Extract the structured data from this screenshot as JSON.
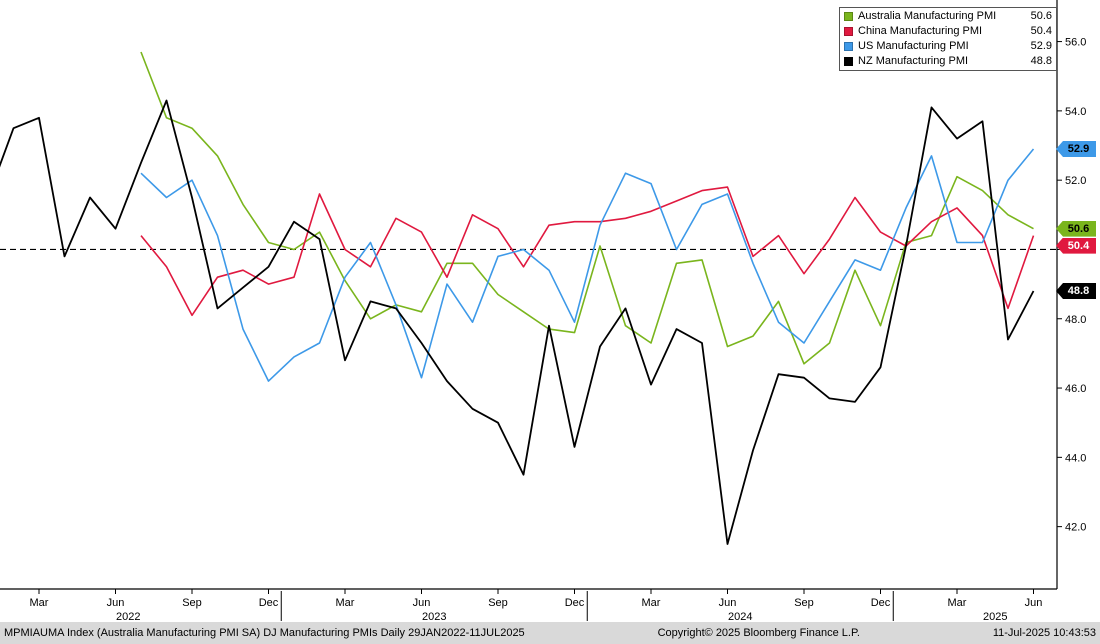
{
  "chart_data": {
    "type": "line",
    "title": "DJ Manufacturing PMIs",
    "xlabel": "",
    "ylabel": "",
    "frequency_shown": "monthly points, daily-dated range 29JAN2022-11JUL2025",
    "grid": false,
    "legend_position": "top-right",
    "ylim": [
      40.2,
      57.2
    ],
    "yticks": [
      56,
      54,
      52,
      50,
      48,
      46,
      44,
      42
    ],
    "ytick_labels": [
      "56.0",
      "54.0",
      "52.0",
      "50.0",
      "48.0",
      "46.0",
      "44.0",
      "42.0"
    ],
    "reference_line": 50.0,
    "x": [
      "Jan 2022",
      "Feb 2022",
      "Mar 2022",
      "Apr 2022",
      "May 2022",
      "Jun 2022",
      "Jul 2022",
      "Aug 2022",
      "Sep 2022",
      "Oct 2022",
      "Nov 2022",
      "Dec 2022",
      "Jan 2023",
      "Feb 2023",
      "Mar 2023",
      "Apr 2023",
      "May 2023",
      "Jun 2023",
      "Jul 2023",
      "Aug 2023",
      "Sep 2023",
      "Oct 2023",
      "Nov 2023",
      "Dec 2023",
      "Jan 2024",
      "Feb 2024",
      "Mar 2024",
      "Apr 2024",
      "May 2024",
      "Jun 2024",
      "Jul 2024",
      "Aug 2024",
      "Sep 2024",
      "Oct 2024",
      "Nov 2024",
      "Dec 2024",
      "Jan 2025",
      "Feb 2025",
      "Mar 2025",
      "Apr 2025",
      "May 2025",
      "Jun 2025"
    ],
    "x_ticks": [
      {
        "i": 2,
        "label": "Mar"
      },
      {
        "i": 5,
        "label": "Jun"
      },
      {
        "i": 8,
        "label": "Sep"
      },
      {
        "i": 11,
        "label": "Dec"
      },
      {
        "i": 14,
        "label": "Mar"
      },
      {
        "i": 17,
        "label": "Jun"
      },
      {
        "i": 20,
        "label": "Sep"
      },
      {
        "i": 23,
        "label": "Dec"
      },
      {
        "i": 26,
        "label": "Mar"
      },
      {
        "i": 29,
        "label": "Jun"
      },
      {
        "i": 32,
        "label": "Sep"
      },
      {
        "i": 35,
        "label": "Dec"
      },
      {
        "i": 38,
        "label": "Mar"
      },
      {
        "i": 41,
        "label": "Jun"
      }
    ],
    "year_labels": [
      {
        "i": 5.5,
        "label": "2022"
      },
      {
        "i": 17.5,
        "label": "2023"
      },
      {
        "i": 29.5,
        "label": "2024"
      },
      {
        "i": 39.5,
        "label": "2025"
      }
    ],
    "year_separators": [
      11.5,
      23.5,
      35.5
    ],
    "series": [
      {
        "id": "australia",
        "name": "Australia Manufacturing PMI",
        "color": "#7ab51d",
        "tag_text": "#000000",
        "last_value": "50.6",
        "values": [
          null,
          null,
          null,
          null,
          null,
          null,
          55.7,
          53.8,
          53.5,
          52.7,
          51.3,
          50.2,
          50.0,
          50.5,
          49.1,
          48.0,
          48.4,
          48.2,
          49.6,
          49.6,
          48.7,
          48.2,
          47.7,
          47.6,
          50.1,
          47.8,
          47.3,
          49.6,
          49.7,
          47.2,
          47.5,
          48.5,
          46.7,
          47.3,
          49.4,
          47.8,
          50.2,
          50.4,
          52.1,
          51.7,
          51.0,
          50.6
        ]
      },
      {
        "id": "china",
        "name": "China Manufacturing PMI",
        "color": "#e0193f",
        "tag_text": "#ffffff",
        "last_value": "50.4",
        "values": [
          null,
          null,
          null,
          null,
          null,
          null,
          50.4,
          49.5,
          48.1,
          49.2,
          49.4,
          49.0,
          49.2,
          51.6,
          50.0,
          49.5,
          50.9,
          50.5,
          49.2,
          51.0,
          50.6,
          49.5,
          50.7,
          50.8,
          50.8,
          50.9,
          51.1,
          51.4,
          51.7,
          51.8,
          49.8,
          50.4,
          49.3,
          50.3,
          51.5,
          50.5,
          50.1,
          50.8,
          51.2,
          50.4,
          48.3,
          50.4
        ]
      },
      {
        "id": "us",
        "name": "US Manufacturing PMI",
        "color": "#3d99e8",
        "tag_text": "#000000",
        "last_value": "52.9",
        "values": [
          null,
          null,
          null,
          null,
          null,
          null,
          52.2,
          51.5,
          52.0,
          50.4,
          47.7,
          46.2,
          46.9,
          47.3,
          49.2,
          50.2,
          48.4,
          46.3,
          49.0,
          47.9,
          49.8,
          50.0,
          49.4,
          47.9,
          50.7,
          52.2,
          51.9,
          50.0,
          51.3,
          51.6,
          49.6,
          47.9,
          47.3,
          48.5,
          49.7,
          49.4,
          51.2,
          52.7,
          50.2,
          50.2,
          52.0,
          52.9
        ]
      },
      {
        "id": "nz",
        "name": "NZ Manufacturing PMI",
        "color": "#000000",
        "tag_text": "#ffffff",
        "last_value": "48.8",
        "values": [
          51.5,
          53.5,
          53.8,
          49.8,
          51.5,
          50.6,
          52.5,
          54.3,
          51.5,
          48.3,
          48.9,
          49.5,
          50.8,
          50.3,
          46.8,
          48.5,
          48.3,
          47.3,
          46.2,
          45.4,
          45.0,
          43.5,
          47.8,
          44.3,
          47.2,
          48.3,
          46.1,
          47.7,
          47.3,
          41.5,
          44.2,
          46.4,
          46.3,
          45.7,
          45.6,
          46.6,
          50.1,
          54.1,
          53.2,
          53.7,
          47.4,
          48.8
        ]
      }
    ]
  },
  "footer": {
    "left": "MPMIAUMA Index (Australia Manufacturing PMI SA) DJ Manufacturing PMIs  Daily 29JAN2022-11JUL2025",
    "center": "Copyright© 2025 Bloomberg Finance L.P.",
    "right": "11-Jul-2025 10:43:53"
  }
}
